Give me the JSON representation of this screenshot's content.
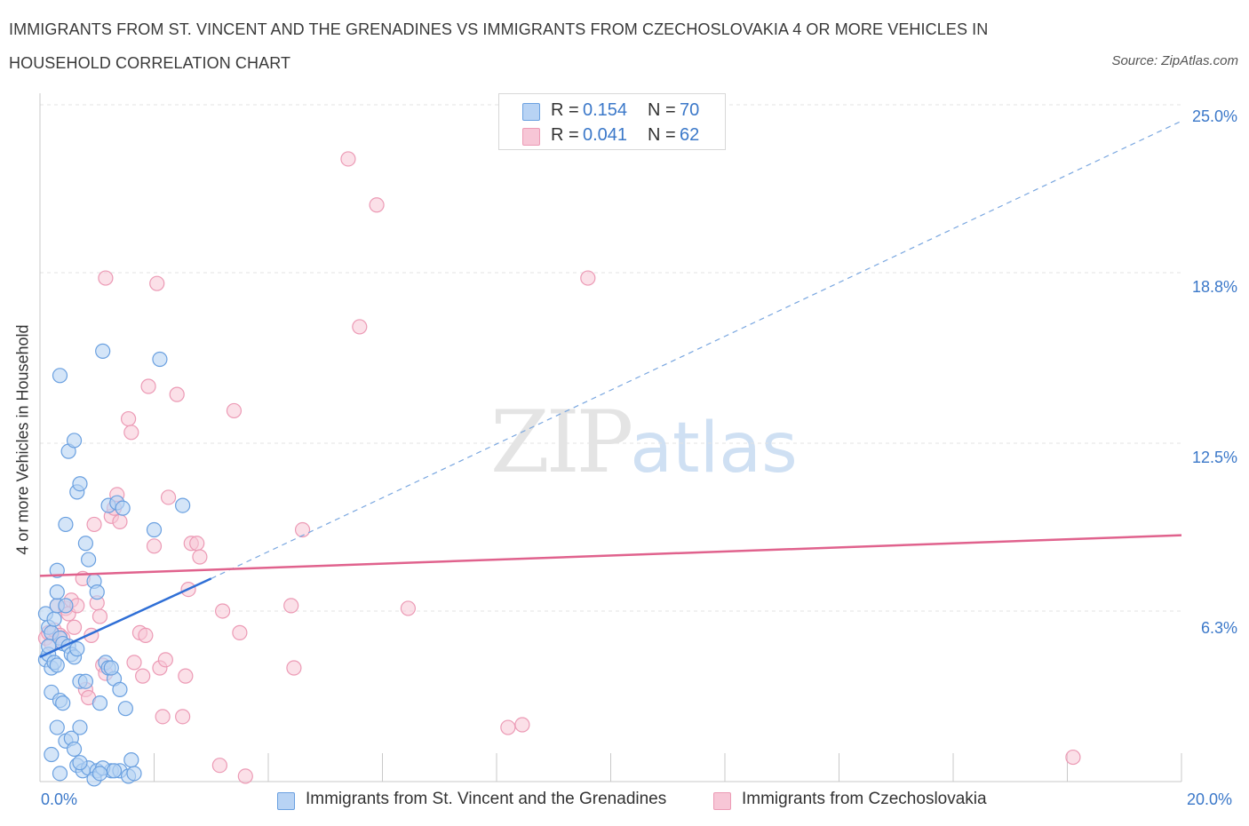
{
  "header": {
    "title": "IMMIGRANTS FROM ST. VINCENT AND THE GRENADINES VS IMMIGRANTS FROM CZECHOSLOVAKIA 4 OR MORE VEHICLES IN HOUSEHOLD CORRELATION CHART",
    "source": "Source: ZipAtlas.com"
  },
  "watermark": {
    "zip": "ZIP",
    "atlas": "atlas"
  },
  "legend": {
    "r_label": "R =",
    "n_label": "N =",
    "series": [
      {
        "r": "0.154",
        "n": "70"
      },
      {
        "r": "0.041",
        "n": "62"
      }
    ]
  },
  "colors": {
    "blue_fill": "#b8d3f4",
    "blue_stroke": "#6aa0e0",
    "blue_line": "#2f6fd6",
    "pink_fill": "#f7c6d6",
    "pink_stroke": "#ec9ab5",
    "pink_line": "#e0628d",
    "accent_text": "#3b78c9",
    "grid": "#e3e3e3"
  },
  "chart_data": {
    "type": "scatter",
    "title": "IMMIGRANTS FROM ST. VINCENT AND THE GRENADINES VS IMMIGRANTS FROM CZECHOSLOVAKIA 4 OR MORE VEHICLES IN HOUSEHOLD CORRELATION CHART",
    "xlabel": "",
    "ylabel": "4 or more Vehicles in Household",
    "xlim": [
      0,
      20
    ],
    "ylim": [
      0,
      25
    ],
    "x_tick_labels": [
      "0.0%",
      "20.0%"
    ],
    "y_ticks": [
      6.3,
      12.5,
      18.8,
      25.0
    ],
    "y_tick_labels": [
      "6.3%",
      "12.5%",
      "18.8%",
      "25.0%"
    ],
    "grid": true,
    "legend_position": "top-center",
    "series": [
      {
        "name": "Immigrants from St. Vincent and the Grenadines",
        "color": "blue",
        "R": 0.154,
        "N": 70,
        "trend": {
          "x": [
            0,
            3.0
          ],
          "y": [
            4.6,
            7.5
          ],
          "dashed_extension_to": [
            20,
            24.4
          ]
        },
        "points": [
          [
            0.1,
            4.5
          ],
          [
            0.15,
            4.7
          ],
          [
            0.2,
            4.2
          ],
          [
            0.25,
            4.4
          ],
          [
            0.3,
            4.3
          ],
          [
            0.15,
            5.7
          ],
          [
            0.2,
            5.5
          ],
          [
            0.1,
            6.2
          ],
          [
            0.25,
            6.0
          ],
          [
            0.3,
            6.5
          ],
          [
            0.35,
            5.3
          ],
          [
            0.4,
            5.1
          ],
          [
            0.45,
            6.5
          ],
          [
            0.5,
            5.0
          ],
          [
            0.55,
            4.7
          ],
          [
            0.6,
            4.6
          ],
          [
            0.65,
            4.9
          ],
          [
            0.7,
            3.7
          ],
          [
            0.3,
            7.0
          ],
          [
            0.3,
            7.8
          ],
          [
            0.35,
            15.0
          ],
          [
            0.45,
            9.5
          ],
          [
            0.5,
            12.2
          ],
          [
            0.6,
            12.6
          ],
          [
            0.65,
            10.7
          ],
          [
            0.7,
            11.0
          ],
          [
            0.8,
            8.8
          ],
          [
            0.85,
            8.2
          ],
          [
            0.95,
            7.4
          ],
          [
            1.1,
            15.9
          ],
          [
            1.2,
            10.2
          ],
          [
            1.35,
            10.3
          ],
          [
            1.45,
            10.1
          ],
          [
            1.0,
            7.0
          ],
          [
            1.15,
            4.4
          ],
          [
            1.2,
            4.2
          ],
          [
            1.3,
            3.8
          ],
          [
            1.4,
            3.4
          ],
          [
            1.5,
            2.7
          ],
          [
            1.25,
            4.2
          ],
          [
            2.0,
            9.3
          ],
          [
            2.5,
            10.2
          ],
          [
            2.1,
            15.6
          ],
          [
            0.2,
            3.3
          ],
          [
            0.35,
            3.0
          ],
          [
            0.4,
            2.9
          ],
          [
            0.3,
            2.0
          ],
          [
            0.45,
            1.5
          ],
          [
            0.55,
            1.6
          ],
          [
            0.6,
            1.2
          ],
          [
            0.2,
            1.0
          ],
          [
            0.65,
            0.6
          ],
          [
            0.75,
            0.4
          ],
          [
            0.85,
            0.5
          ],
          [
            1.0,
            0.4
          ],
          [
            1.25,
            0.4
          ],
          [
            1.4,
            0.4
          ],
          [
            1.55,
            0.2
          ],
          [
            0.35,
            0.3
          ],
          [
            0.95,
            0.1
          ],
          [
            1.65,
            0.3
          ],
          [
            1.6,
            0.8
          ],
          [
            1.1,
            0.5
          ],
          [
            0.7,
            0.7
          ],
          [
            1.05,
            2.9
          ],
          [
            0.8,
            3.7
          ],
          [
            1.05,
            0.3
          ],
          [
            0.15,
            5.0
          ],
          [
            1.3,
            0.4
          ],
          [
            0.7,
            2.0
          ]
        ]
      },
      {
        "name": "Immigrants from Czechoslovakia",
        "color": "pink",
        "R": 0.041,
        "N": 62,
        "trend": {
          "x": [
            0,
            20
          ],
          "y": [
            7.6,
            9.1
          ]
        },
        "points": [
          [
            0.1,
            5.3
          ],
          [
            0.15,
            5.5
          ],
          [
            0.2,
            5.1
          ],
          [
            0.25,
            5.6
          ],
          [
            0.3,
            6.5
          ],
          [
            0.35,
            5.4
          ],
          [
            0.4,
            5.3
          ],
          [
            0.45,
            6.4
          ],
          [
            0.5,
            6.2
          ],
          [
            0.55,
            6.7
          ],
          [
            0.6,
            5.7
          ],
          [
            0.65,
            6.5
          ],
          [
            0.75,
            7.5
          ],
          [
            0.8,
            3.4
          ],
          [
            0.85,
            3.1
          ],
          [
            0.9,
            5.4
          ],
          [
            0.95,
            9.5
          ],
          [
            1.0,
            6.6
          ],
          [
            1.05,
            6.1
          ],
          [
            1.1,
            4.3
          ],
          [
            1.15,
            4.0
          ],
          [
            1.25,
            9.8
          ],
          [
            1.3,
            10.1
          ],
          [
            1.35,
            10.6
          ],
          [
            1.4,
            9.6
          ],
          [
            1.55,
            13.4
          ],
          [
            1.6,
            12.9
          ],
          [
            1.65,
            4.4
          ],
          [
            1.75,
            5.5
          ],
          [
            1.8,
            3.9
          ],
          [
            1.85,
            5.4
          ],
          [
            1.9,
            14.6
          ],
          [
            2.0,
            8.7
          ],
          [
            2.05,
            18.4
          ],
          [
            2.1,
            4.2
          ],
          [
            2.15,
            2.4
          ],
          [
            2.2,
            4.5
          ],
          [
            2.25,
            10.5
          ],
          [
            2.4,
            14.3
          ],
          [
            2.5,
            2.4
          ],
          [
            2.55,
            3.9
          ],
          [
            2.6,
            7.1
          ],
          [
            2.65,
            8.8
          ],
          [
            2.75,
            8.8
          ],
          [
            2.8,
            8.3
          ],
          [
            3.15,
            0.6
          ],
          [
            3.2,
            6.3
          ],
          [
            3.4,
            13.7
          ],
          [
            3.5,
            5.5
          ],
          [
            3.6,
            0.2
          ],
          [
            4.4,
            6.5
          ],
          [
            4.45,
            4.2
          ],
          [
            4.6,
            9.3
          ],
          [
            5.4,
            23.0
          ],
          [
            5.6,
            16.8
          ],
          [
            5.9,
            21.3
          ],
          [
            6.45,
            6.4
          ],
          [
            8.2,
            2.0
          ],
          [
            8.45,
            2.1
          ],
          [
            9.6,
            18.6
          ],
          [
            18.1,
            0.9
          ],
          [
            1.15,
            18.6
          ]
        ]
      }
    ]
  },
  "bottom_legend": {
    "items": [
      {
        "label": "Immigrants from St. Vincent and the Grenadines"
      },
      {
        "label": "Immigrants from Czechoslovakia"
      }
    ]
  }
}
